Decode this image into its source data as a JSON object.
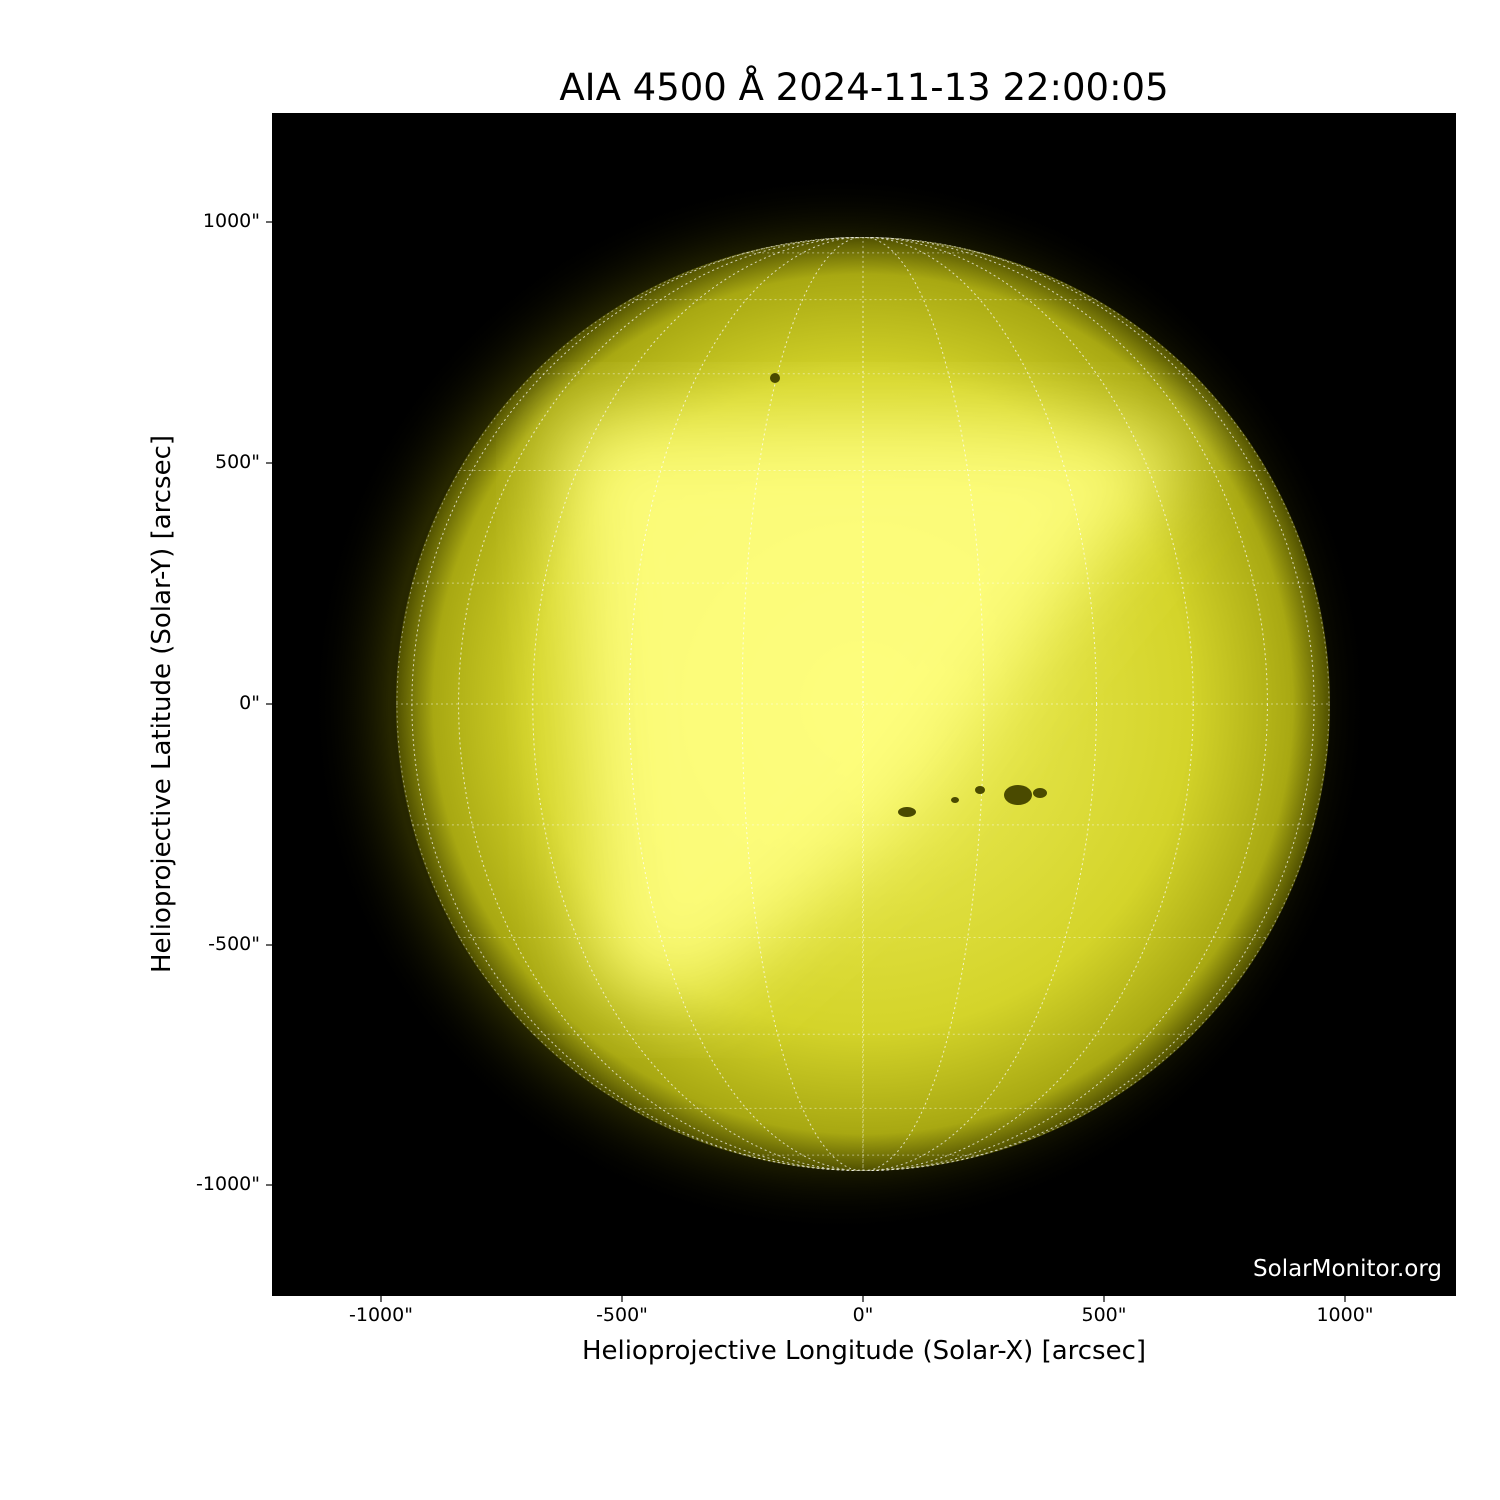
{
  "title": "AIA 4500 Å 2024-11-13 22:00:05",
  "xlabel": "Helioprojective Longitude (Solar-X) [arcsec]",
  "ylabel": "Helioprojective Latitude (Solar-Y) [arcsec]",
  "x_ticks": [
    "-1000\"",
    "-500\"",
    "0\"",
    "500\"",
    "1000\""
  ],
  "y_ticks": [
    "1000\"",
    "500\"",
    "0\"",
    "-500\"",
    "-1000\""
  ],
  "watermark": "SolarMonitor.org",
  "colors": {
    "background": "#000000",
    "disk": "#d8d820",
    "disk_bright": "#ffff80",
    "grid": "#ffffff"
  }
}
